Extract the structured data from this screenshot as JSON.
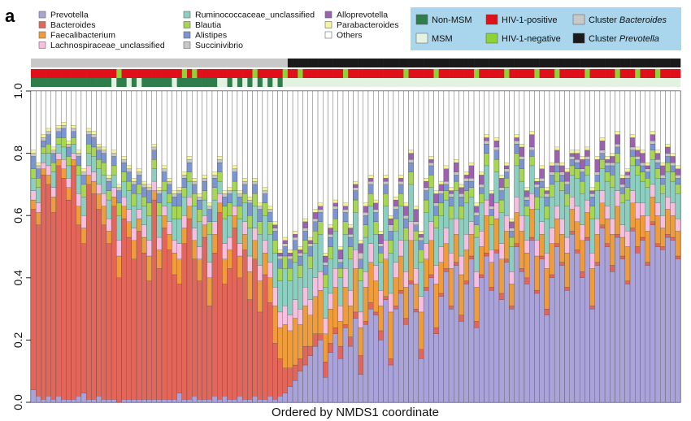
{
  "chart_data": {
    "type": "bar",
    "stacked": true,
    "panel_label": "a",
    "title": "",
    "xlabel": "Ordered by NMDS1 coordinate",
    "ylabel": "",
    "ylim": [
      0,
      1
    ],
    "yticks": [
      "0.0",
      "0.2",
      "0.4",
      "0.6",
      "0.8",
      "1.0"
    ],
    "n_samples": 129,
    "grid": false,
    "legend_position": "top-left",
    "series": [
      {
        "name": "Prevotella",
        "color": "#a9a3d9"
      },
      {
        "name": "Bacteroides",
        "color": "#e2665a"
      },
      {
        "name": "Faecalibacterium",
        "color": "#ee9c3c"
      },
      {
        "name": "Lachnospiraceae_unclassified",
        "color": "#f6bfe0"
      },
      {
        "name": "Ruminococcaceae_unclassified",
        "color": "#8ccfc0"
      },
      {
        "name": "Blautia",
        "color": "#a6d654"
      },
      {
        "name": "Alistipes",
        "color": "#7a95cf"
      },
      {
        "name": "Succinivibrio",
        "color": "#c8c8c8"
      },
      {
        "name": "Alloprevotella",
        "color": "#9c62b0"
      },
      {
        "name": "Parabacteroides",
        "color": "#f5f59a"
      },
      {
        "name": "Others",
        "color": "#ffffff"
      }
    ],
    "segment_data_note": "",
    "segments": {
      "Prevotella": [
        4,
        2,
        1,
        2,
        1,
        2,
        1,
        1,
        1,
        2,
        3,
        1,
        1,
        2,
        1,
        1,
        1,
        0,
        1,
        1,
        1,
        1,
        1,
        1,
        1,
        1,
        1,
        1,
        1,
        3,
        1,
        1,
        2,
        1,
        1,
        1,
        2,
        1,
        2,
        1,
        1,
        2,
        1,
        1,
        2,
        1,
        1,
        2,
        1,
        2,
        3,
        5,
        7,
        10,
        12,
        15,
        18,
        20,
        8,
        16,
        22,
        14,
        24,
        18,
        27,
        9,
        25,
        30,
        28,
        20,
        33,
        12,
        30,
        35,
        25,
        38,
        29,
        14,
        36,
        40,
        22,
        34,
        42,
        30,
        44,
        26,
        38,
        46,
        24,
        40,
        47,
        36,
        48,
        33,
        45,
        30,
        50,
        42,
        38,
        52,
        35,
        46,
        28,
        40,
        50,
        44,
        36,
        54,
        48,
        40,
        52,
        30,
        44,
        56,
        50,
        42,
        53,
        46,
        38,
        55,
        48,
        52,
        44,
        57,
        50,
        49,
        53,
        52,
        46
      ],
      "Bacteroides": [
        58,
        55,
        72,
        68,
        60,
        74,
        71,
        64,
        75,
        55,
        48,
        69,
        66,
        60,
        56,
        50,
        62,
        40,
        58,
        52,
        45,
        54,
        47,
        38,
        64,
        42,
        55,
        48,
        40,
        35,
        50,
        58,
        44,
        38,
        52,
        30,
        46,
        60,
        36,
        42,
        55,
        38,
        48,
        32,
        44,
        28,
        40,
        30,
        18,
        12,
        8,
        6,
        5,
        4,
        6,
        3,
        4,
        2,
        5,
        3,
        2,
        4,
        1,
        3,
        2,
        6,
        1,
        2,
        1,
        3,
        1,
        2,
        1,
        1,
        2,
        1,
        1,
        3,
        1,
        1,
        2,
        1,
        1,
        1,
        1,
        2,
        1,
        1,
        2,
        1,
        1,
        1,
        1,
        2,
        1,
        1,
        1,
        1,
        2,
        1,
        1,
        1,
        2,
        1,
        1,
        1,
        1,
        1,
        1,
        2,
        1,
        1,
        1,
        1,
        1,
        2,
        1,
        1,
        1,
        1,
        2,
        1,
        1,
        1,
        1,
        1,
        1,
        1,
        1
      ],
      "Faecalibacterium": [
        3,
        4,
        2,
        3,
        5,
        2,
        3,
        4,
        2,
        6,
        5,
        3,
        4,
        5,
        6,
        4,
        3,
        7,
        4,
        5,
        6,
        4,
        5,
        8,
        3,
        6,
        4,
        5,
        7,
        8,
        5,
        4,
        6,
        7,
        4,
        9,
        6,
        3,
        8,
        6,
        4,
        7,
        5,
        9,
        6,
        10,
        7,
        8,
        12,
        10,
        14,
        12,
        15,
        11,
        13,
        10,
        12,
        14,
        9,
        11,
        13,
        8,
        12,
        10,
        14,
        9,
        11,
        13,
        10,
        8,
        12,
        15,
        9,
        11,
        10,
        13,
        8,
        12,
        9,
        11,
        14,
        10,
        8,
        12,
        9,
        13,
        10,
        7,
        11,
        9,
        12,
        8,
        10,
        11,
        9,
        7,
        10,
        12,
        8,
        9,
        11,
        7,
        13,
        10,
        8,
        9,
        11,
        7,
        9,
        10,
        8,
        12,
        9,
        7,
        8,
        10,
        9,
        6,
        11,
        8,
        9,
        7,
        10,
        8,
        9,
        6,
        8,
        7,
        8
      ],
      "Lachnospiraceae_unclassified": [
        3,
        3,
        2,
        3,
        3,
        2,
        3,
        3,
        2,
        4,
        4,
        3,
        3,
        3,
        4,
        4,
        3,
        5,
        3,
        4,
        4,
        3,
        4,
        5,
        3,
        4,
        3,
        4,
        4,
        5,
        4,
        3,
        4,
        4,
        3,
        5,
        4,
        3,
        5,
        4,
        3,
        4,
        4,
        5,
        4,
        5,
        4,
        5,
        6,
        5,
        6,
        5,
        6,
        5,
        6,
        5,
        6,
        6,
        5,
        5,
        6,
        5,
        6,
        5,
        6,
        5,
        5,
        6,
        5,
        5,
        6,
        6,
        5,
        5,
        5,
        6,
        5,
        5,
        5,
        6,
        6,
        5,
        5,
        5,
        5,
        6,
        5,
        4,
        5,
        5,
        5,
        4,
        5,
        5,
        5,
        4,
        5,
        5,
        4,
        5,
        5,
        4,
        5,
        5,
        4,
        5,
        5,
        4,
        5,
        5,
        4,
        5,
        5,
        4,
        4,
        5,
        5,
        4,
        5,
        4,
        5,
        4,
        5,
        4,
        4,
        4,
        4,
        4,
        4
      ],
      "Ruminococcaceae_unclassified": [
        4,
        5,
        3,
        4,
        5,
        3,
        4,
        4,
        3,
        6,
        6,
        4,
        5,
        5,
        6,
        6,
        4,
        8,
        5,
        6,
        7,
        5,
        6,
        8,
        4,
        7,
        5,
        6,
        7,
        8,
        6,
        5,
        7,
        8,
        5,
        9,
        7,
        4,
        8,
        7,
        5,
        8,
        6,
        9,
        7,
        10,
        8,
        9,
        11,
        10,
        12,
        11,
        12,
        10,
        11,
        10,
        11,
        12,
        10,
        11,
        12,
        9,
        11,
        10,
        12,
        10,
        11,
        12,
        10,
        9,
        11,
        13,
        10,
        11,
        10,
        12,
        9,
        11,
        10,
        11,
        12,
        10,
        9,
        11,
        9,
        12,
        10,
        8,
        11,
        9,
        11,
        8,
        10,
        10,
        9,
        8,
        10,
        11,
        8,
        9,
        10,
        8,
        11,
        10,
        8,
        9,
        10,
        7,
        9,
        10,
        8,
        11,
        9,
        7,
        8,
        10,
        9,
        7,
        10,
        8,
        9,
        7,
        9,
        8,
        8,
        7,
        8,
        7,
        8
      ],
      "Blautia": [
        3,
        3,
        2,
        3,
        3,
        2,
        3,
        3,
        2,
        3,
        4,
        3,
        3,
        3,
        4,
        3,
        3,
        4,
        3,
        3,
        4,
        3,
        3,
        4,
        3,
        4,
        3,
        3,
        4,
        4,
        3,
        3,
        4,
        4,
        3,
        4,
        4,
        3,
        4,
        4,
        3,
        4,
        3,
        4,
        4,
        4,
        4,
        4,
        4,
        4,
        4,
        4,
        4,
        4,
        4,
        4,
        4,
        4,
        4,
        4,
        4,
        3,
        4,
        4,
        4,
        4,
        4,
        4,
        4,
        3,
        4,
        4,
        4,
        4,
        4,
        4,
        3,
        4,
        4,
        4,
        4,
        4,
        3,
        4,
        3,
        4,
        4,
        3,
        4,
        3,
        4,
        3,
        4,
        4,
        3,
        3,
        4,
        4,
        3,
        3,
        4,
        3,
        4,
        4,
        3,
        3,
        4,
        3,
        3,
        4,
        3,
        4,
        3,
        3,
        3,
        4,
        3,
        3,
        4,
        3,
        3,
        3,
        3,
        3,
        3,
        3,
        3,
        3,
        3
      ],
      "Alistipes": [
        4,
        3,
        2,
        3,
        3,
        2,
        3,
        3,
        2,
        3,
        3,
        3,
        3,
        3,
        3,
        3,
        3,
        4,
        3,
        3,
        3,
        3,
        3,
        4,
        3,
        3,
        3,
        3,
        3,
        4,
        3,
        3,
        3,
        3,
        3,
        4,
        3,
        3,
        3,
        3,
        3,
        3,
        3,
        4,
        3,
        4,
        3,
        3,
        3,
        3,
        3,
        3,
        3,
        3,
        3,
        3,
        3,
        3,
        3,
        3,
        3,
        2,
        3,
        3,
        3,
        3,
        3,
        3,
        3,
        2,
        3,
        3,
        3,
        3,
        3,
        3,
        2,
        3,
        3,
        3,
        3,
        3,
        2,
        3,
        2,
        3,
        3,
        2,
        3,
        2,
        3,
        2,
        3,
        3,
        2,
        2,
        3,
        3,
        2,
        2,
        3,
        2,
        3,
        3,
        2,
        2,
        3,
        2,
        2,
        3,
        2,
        3,
        2,
        2,
        2,
        3,
        2,
        2,
        3,
        2,
        2,
        2,
        2,
        2,
        2,
        2,
        2,
        2,
        2
      ],
      "Succinivibrio": [
        1,
        1,
        1,
        1,
        1,
        1,
        1,
        1,
        1,
        1,
        1,
        1,
        1,
        1,
        1,
        1,
        1,
        1,
        1,
        1,
        1,
        1,
        1,
        1,
        1,
        1,
        1,
        1,
        1,
        1,
        1,
        1,
        1,
        1,
        1,
        1,
        1,
        1,
        1,
        1,
        1,
        1,
        1,
        1,
        1,
        1,
        1,
        1,
        1,
        1,
        1,
        1,
        1,
        1,
        1,
        1,
        1,
        1,
        1,
        1,
        1,
        1,
        1,
        1,
        1,
        2,
        1,
        1,
        1,
        1,
        1,
        2,
        1,
        1,
        1,
        1,
        1,
        1,
        1,
        1,
        1,
        1,
        1,
        1,
        1,
        1,
        1,
        1,
        1,
        1,
        1,
        1,
        1,
        1,
        1,
        1,
        1,
        1,
        1,
        1,
        1,
        1,
        1,
        1,
        1,
        1,
        1,
        1,
        1,
        1,
        1,
        1,
        1,
        1,
        1,
        1,
        1,
        1,
        1,
        1,
        1,
        1,
        1,
        1,
        1,
        1,
        1,
        1,
        1
      ],
      "Alloprevotella": [
        0,
        0,
        0,
        0,
        0,
        0,
        0,
        0,
        0,
        0,
        0,
        0,
        0,
        0,
        0,
        0,
        0,
        0,
        0,
        0,
        0,
        0,
        0,
        0,
        0,
        0,
        0,
        0,
        0,
        0,
        0,
        0,
        0,
        0,
        0,
        0,
        0,
        0,
        0,
        0,
        0,
        0,
        0,
        0,
        0,
        0,
        0,
        0,
        1,
        1,
        1,
        1,
        1,
        1,
        2,
        1,
        2,
        1,
        2,
        2,
        1,
        3,
        1,
        2,
        1,
        3,
        2,
        1,
        2,
        3,
        1,
        2,
        2,
        1,
        3,
        2,
        4,
        1,
        2,
        1,
        3,
        2,
        4,
        1,
        3,
        2,
        1,
        4,
        2,
        3,
        1,
        4,
        2,
        3,
        1,
        2,
        1,
        3,
        2,
        4,
        1,
        3,
        1,
        2,
        4,
        2,
        3,
        1,
        2,
        3,
        2,
        1,
        4,
        3,
        1,
        2,
        3,
        2,
        1,
        3,
        2,
        3,
        1,
        2,
        2,
        3,
        2,
        2,
        2
      ],
      "Parabacteroides": [
        1,
        1,
        1,
        1,
        1,
        1,
        1,
        1,
        1,
        1,
        1,
        1,
        1,
        1,
        1,
        1,
        1,
        1,
        1,
        1,
        1,
        1,
        1,
        1,
        1,
        1,
        1,
        1,
        1,
        1,
        1,
        1,
        1,
        1,
        1,
        1,
        1,
        1,
        1,
        1,
        1,
        1,
        1,
        1,
        1,
        1,
        1,
        1,
        1,
        1,
        1,
        1,
        1,
        1,
        1,
        1,
        1,
        1,
        1,
        1,
        1,
        1,
        1,
        1,
        1,
        1,
        1,
        1,
        1,
        1,
        1,
        1,
        1,
        1,
        1,
        1,
        1,
        1,
        1,
        1,
        1,
        1,
        1,
        1,
        1,
        1,
        1,
        1,
        1,
        1,
        1,
        1,
        1,
        1,
        1,
        1,
        1,
        1,
        1,
        1,
        1,
        1,
        1,
        1,
        1,
        1,
        1,
        1,
        1,
        1,
        1,
        1,
        1,
        1,
        1,
        1,
        1,
        1,
        1,
        1,
        1,
        1,
        1,
        1,
        1,
        1,
        1,
        1,
        1
      ]
    },
    "annotation_tracks": [
      {
        "name": "cluster",
        "legend": [
          {
            "label_plain": "Cluster ",
            "label_italic": "Bacteroides",
            "color": "#c8c8c8"
          },
          {
            "label_plain": "Cluster ",
            "label_italic": "Prevotella",
            "color": "#1a1a1a"
          }
        ],
        "split_after": 50
      },
      {
        "name": "hiv",
        "legend": [
          {
            "label": "HIV-1-positive",
            "color": "#e0101a"
          },
          {
            "label": "HIV-1-negative",
            "color": "#8cd434"
          }
        ],
        "negative_positions": [
          17,
          30,
          32,
          44,
          50,
          53,
          62,
          74,
          80,
          88,
          94,
          100,
          104,
          110,
          116,
          120,
          124
        ]
      },
      {
        "name": "msm",
        "legend": [
          {
            "label": "Non-MSM",
            "color": "#2e7d4a"
          },
          {
            "label": "MSM",
            "color": "#e3f2e1"
          }
        ],
        "msm_positions": [
          16,
          19,
          21,
          28,
          37,
          38,
          40,
          42,
          44,
          46,
          48,
          50
        ]
      }
    ]
  }
}
